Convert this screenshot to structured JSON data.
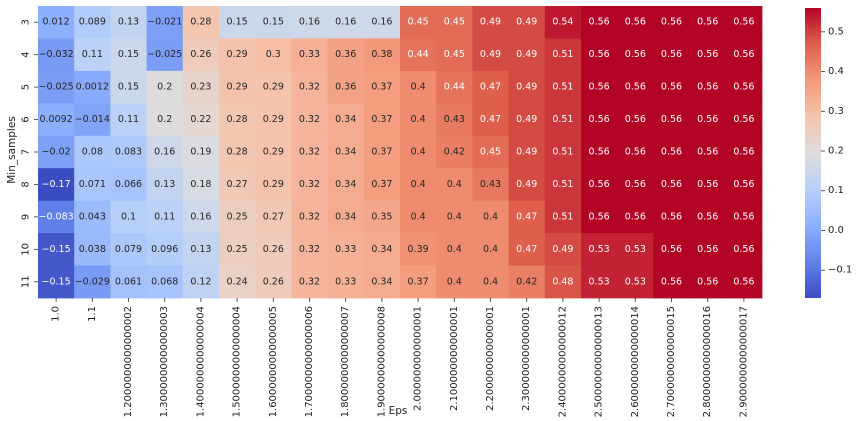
{
  "chart_data": {
    "type": "heatmap",
    "xlabel": "Eps",
    "ylabel": "Min_samples",
    "x_ticks": [
      "1.0",
      "1.1",
      "1.2000000000000002",
      "1.3000000000000003",
      "1.4000000000000004",
      "1.5000000000000004",
      "1.6000000000000005",
      "1.7000000000000006",
      "1.8000000000000007",
      "1.9000000000000008",
      "2.000000000000001",
      "2.100000000000001",
      "2.200000000000001",
      "2.300000000000001",
      "2.4000000000000012",
      "2.5000000000000013",
      "2.6000000000000014",
      "2.7000000000000015",
      "2.8000000000000016",
      "2.9000000000000017"
    ],
    "y_ticks": [
      "3",
      "4",
      "5",
      "6",
      "7",
      "8",
      "9",
      "10",
      "11"
    ],
    "values": [
      [
        0.012,
        0.089,
        0.13,
        -0.021,
        0.28,
        0.15,
        0.15,
        0.16,
        0.16,
        0.16,
        0.45,
        0.45,
        0.49,
        0.49,
        0.54,
        0.56,
        0.56,
        0.56,
        0.56,
        0.56
      ],
      [
        -0.032,
        0.11,
        0.15,
        -0.025,
        0.26,
        0.29,
        0.3,
        0.33,
        0.36,
        0.38,
        0.44,
        0.45,
        0.49,
        0.49,
        0.51,
        0.56,
        0.56,
        0.56,
        0.56,
        0.56
      ],
      [
        -0.025,
        0.0012,
        0.15,
        0.2,
        0.23,
        0.29,
        0.29,
        0.32,
        0.36,
        0.37,
        0.4,
        0.44,
        0.47,
        0.49,
        0.51,
        0.56,
        0.56,
        0.56,
        0.56,
        0.56
      ],
      [
        0.0092,
        -0.014,
        0.11,
        0.2,
        0.22,
        0.28,
        0.29,
        0.32,
        0.34,
        0.37,
        0.4,
        0.43,
        0.47,
        0.49,
        0.51,
        0.56,
        0.56,
        0.56,
        0.56,
        0.56
      ],
      [
        -0.02,
        0.08,
        0.083,
        0.16,
        0.19,
        0.28,
        0.29,
        0.32,
        0.34,
        0.37,
        0.4,
        0.42,
        0.45,
        0.49,
        0.51,
        0.56,
        0.56,
        0.56,
        0.56,
        0.56
      ],
      [
        -0.17,
        0.071,
        0.066,
        0.13,
        0.18,
        0.27,
        0.29,
        0.32,
        0.34,
        0.37,
        0.4,
        0.4,
        0.43,
        0.49,
        0.51,
        0.56,
        0.56,
        0.56,
        0.56,
        0.56
      ],
      [
        -0.083,
        0.043,
        0.1,
        0.11,
        0.16,
        0.25,
        0.27,
        0.32,
        0.34,
        0.35,
        0.4,
        0.4,
        0.4,
        0.47,
        0.51,
        0.56,
        0.56,
        0.56,
        0.56,
        0.56
      ],
      [
        -0.15,
        0.038,
        0.079,
        0.096,
        0.13,
        0.25,
        0.26,
        0.32,
        0.33,
        0.34,
        0.39,
        0.4,
        0.4,
        0.47,
        0.49,
        0.53,
        0.53,
        0.56,
        0.56,
        0.56
      ],
      [
        -0.15,
        -0.029,
        0.061,
        0.068,
        0.12,
        0.24,
        0.26,
        0.32,
        0.33,
        0.34,
        0.37,
        0.4,
        0.4,
        0.42,
        0.48,
        0.53,
        0.53,
        0.56,
        0.56,
        0.56
      ]
    ],
    "colormap": "coolwarm",
    "vmin": -0.17,
    "vmax": 0.56,
    "colorbar_ticks": [
      "0.5",
      "0.4",
      "0.3",
      "0.2",
      "0.1",
      "0.0",
      "−0.1"
    ],
    "colorbar_tick_values": [
      0.5,
      0.4,
      0.3,
      0.2,
      0.1,
      0.0,
      -0.1
    ],
    "annotated": true,
    "grid": false
  }
}
